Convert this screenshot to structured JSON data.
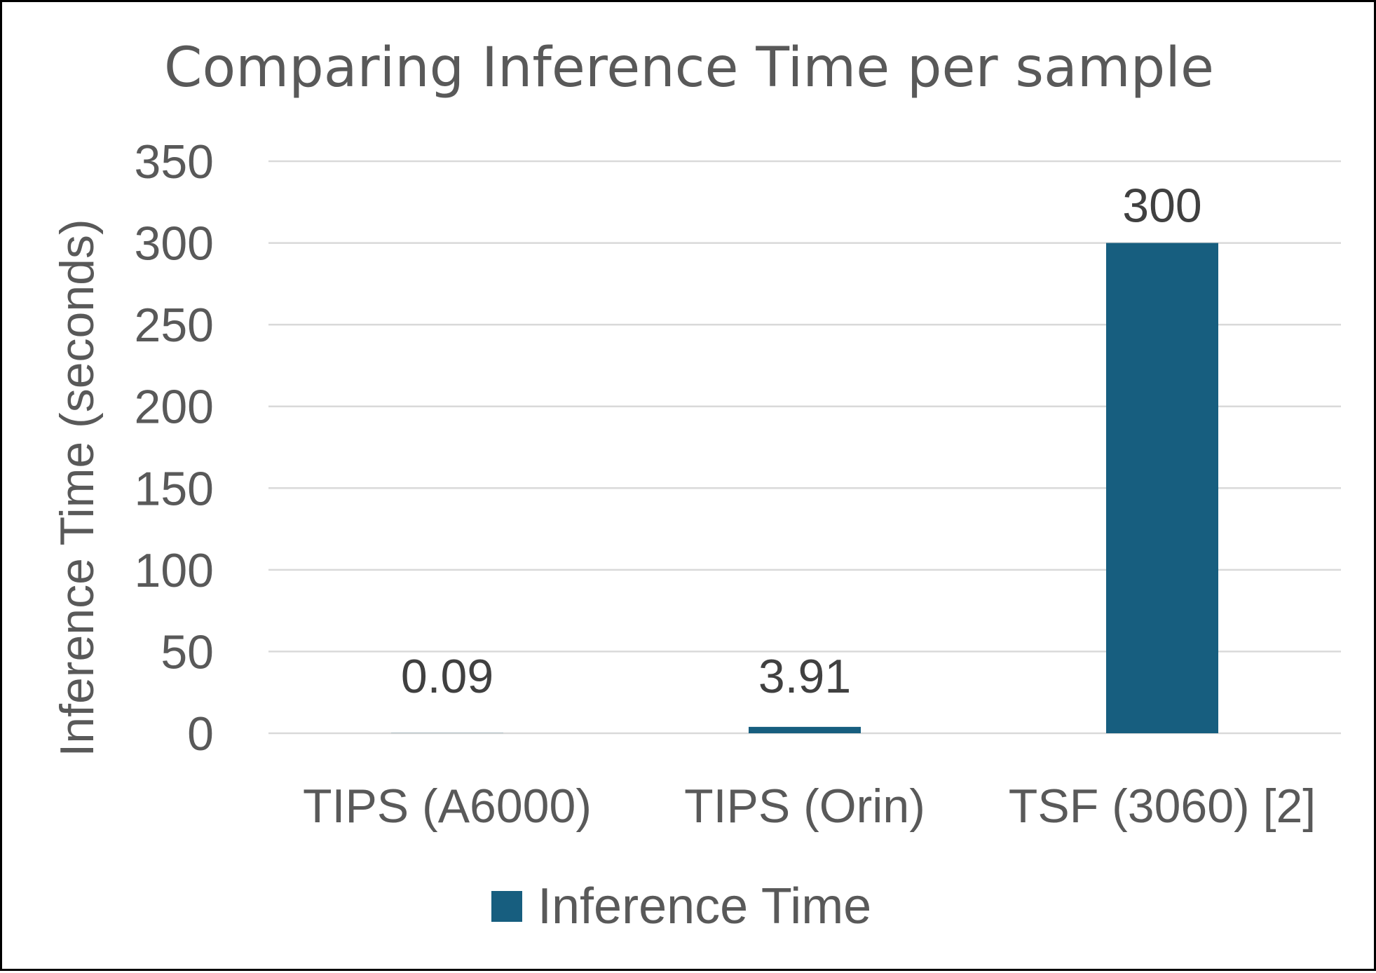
{
  "chart_data": {
    "type": "bar",
    "title": "Comparing Inference Time per sample",
    "xlabel": "",
    "ylabel": "Inference Time (seconds)",
    "categories": [
      "TIPS (A6000)",
      "TIPS (Orin)",
      "TSF (3060) [2]"
    ],
    "series": [
      {
        "name": "Inference Time",
        "values": [
          0.09,
          3.91,
          300
        ],
        "labels": [
          "0.09",
          "3.91",
          "300"
        ],
        "color": "#175e7f"
      }
    ],
    "ylim": [
      0,
      350
    ],
    "yticks": [
      0,
      50,
      100,
      150,
      200,
      250,
      300,
      350
    ],
    "grid": true,
    "legend": "bottom",
    "data_labels": true
  }
}
